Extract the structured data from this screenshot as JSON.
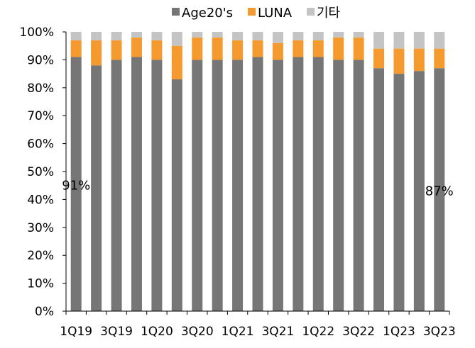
{
  "chart_data": {
    "type": "bar",
    "stacked": true,
    "categories": [
      "1Q19",
      "2Q19",
      "3Q19",
      "4Q19",
      "1Q20",
      "2Q20",
      "3Q20",
      "4Q20",
      "1Q21",
      "2Q21",
      "3Q21",
      "4Q21",
      "1Q22",
      "2Q22",
      "3Q22",
      "4Q22",
      "1Q23",
      "2Q23",
      "3Q23"
    ],
    "tick_labels": [
      "1Q19",
      "",
      "3Q19",
      "",
      "1Q20",
      "",
      "3Q20",
      "",
      "1Q21",
      "",
      "3Q21",
      "",
      "1Q22",
      "",
      "3Q22",
      "",
      "1Q23",
      "",
      "3Q23"
    ],
    "series": [
      {
        "name": "Age20's",
        "color": "#767676",
        "values": [
          91,
          88,
          90,
          91,
          90,
          83,
          90,
          90,
          90,
          91,
          90,
          91,
          91,
          90,
          90,
          87,
          85,
          86,
          87
        ]
      },
      {
        "name": "LUNA",
        "color": "#f59a2f",
        "values": [
          6,
          9,
          7,
          7,
          7,
          12,
          8,
          8,
          7,
          6,
          6,
          6,
          6,
          8,
          8,
          7,
          9,
          8,
          7
        ]
      },
      {
        "name": "기타",
        "color": "#c4c4c4",
        "values": [
          3,
          3,
          3,
          2,
          3,
          5,
          2,
          2,
          3,
          3,
          4,
          3,
          3,
          2,
          2,
          6,
          6,
          6,
          6
        ]
      }
    ],
    "ylim": [
      0,
      100
    ],
    "yticks": [
      "0%",
      "10%",
      "20%",
      "30%",
      "40%",
      "50%",
      "60%",
      "70%",
      "80%",
      "90%",
      "100%"
    ],
    "annotations": [
      {
        "text": "91%",
        "category": "1Q19",
        "y": 45
      },
      {
        "text": "87%",
        "category": "3Q23",
        "y": 43
      }
    ],
    "legend_position": "top-right",
    "grid": false
  }
}
